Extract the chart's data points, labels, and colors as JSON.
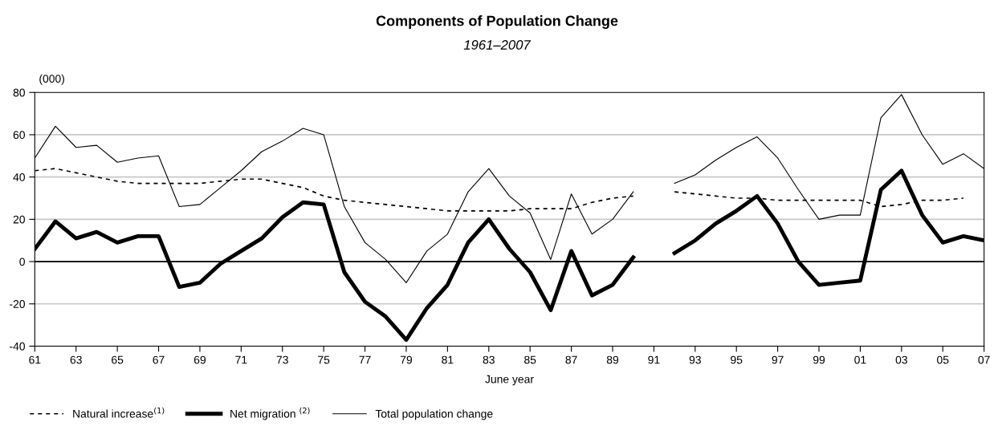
{
  "chart_data": {
    "type": "line",
    "title": "Components of Population Change",
    "subtitle": "1961–2007",
    "xlabel": "June year",
    "ylabel": "(000)",
    "x": [
      1961,
      1962,
      1963,
      1964,
      1965,
      1966,
      1967,
      1968,
      1969,
      1970,
      1971,
      1972,
      1973,
      1974,
      1975,
      1976,
      1977,
      1978,
      1979,
      1980,
      1981,
      1982,
      1983,
      1984,
      1985,
      1986,
      1987,
      1988,
      1989,
      1990,
      1991,
      1992,
      1993,
      1994,
      1995,
      1996,
      1997,
      1998,
      1999,
      2000,
      2001,
      2002,
      2003,
      2004,
      2005,
      2006,
      2007
    ],
    "series": [
      {
        "name": "Natural increase$^{(1)}$",
        "color": "#000000",
        "line_style": "dashed",
        "values": [
          43,
          44,
          42,
          40,
          38,
          37,
          37,
          37,
          37,
          38,
          39,
          39,
          37,
          35,
          31,
          29,
          28,
          27,
          26,
          25,
          24,
          24,
          24,
          24,
          25,
          25,
          25,
          28,
          30,
          31,
          null,
          33,
          32,
          31,
          30,
          30,
          29,
          29,
          29,
          29,
          29,
          26,
          27,
          29,
          29,
          30,
          null
        ]
      },
      {
        "name": "Net migration $^{(2)}$",
        "color": "#000000",
        "line_style": "solid",
        "values": [
          6,
          19,
          11,
          14,
          9,
          12,
          12,
          -12,
          -10,
          -1,
          5,
          11,
          21,
          28,
          27,
          -5,
          -19,
          -26,
          -37,
          -22,
          -11,
          9,
          20,
          6,
          -5,
          -23,
          5,
          -16,
          -11,
          2,
          null,
          4,
          10,
          18,
          24,
          31,
          18,
          0,
          -11,
          -10,
          -9,
          34,
          43,
          22,
          9,
          12,
          10
        ]
      },
      {
        "name": "Total population change",
        "color": "#000000",
        "line_style": "solid",
        "values": [
          49,
          64,
          54,
          55,
          47,
          49,
          50,
          26,
          27,
          35,
          43,
          52,
          57,
          63,
          60,
          26,
          9,
          1,
          -10,
          5,
          13,
          33,
          44,
          31,
          23,
          1,
          32,
          13,
          20,
          33,
          null,
          37,
          41,
          48,
          54,
          59,
          49,
          34,
          20,
          22,
          22,
          68,
          79,
          60,
          46,
          51,
          44
        ]
      }
    ],
    "xlim": [
      1961,
      2007
    ],
    "xticks": [
      {
        "value": 1961,
        "label": "61"
      },
      {
        "value": 1963,
        "label": "63"
      },
      {
        "value": 1965,
        "label": "65"
      },
      {
        "value": 1967,
        "label": "67"
      },
      {
        "value": 1969,
        "label": "69"
      },
      {
        "value": 1971,
        "label": "71"
      },
      {
        "value": 1973,
        "label": "73"
      },
      {
        "value": 1975,
        "label": "75"
      },
      {
        "value": 1977,
        "label": "77"
      },
      {
        "value": 1979,
        "label": "79"
      },
      {
        "value": 1981,
        "label": "81"
      },
      {
        "value": 1983,
        "label": "83"
      },
      {
        "value": 1985,
        "label": "85"
      },
      {
        "value": 1987,
        "label": "87"
      },
      {
        "value": 1989,
        "label": "89"
      },
      {
        "value": 1991,
        "label": "91"
      },
      {
        "value": 1993,
        "label": "93"
      },
      {
        "value": 1995,
        "label": "95"
      },
      {
        "value": 1997,
        "label": "97"
      },
      {
        "value": 1999,
        "label": "99"
      },
      {
        "value": 2001,
        "label": "01"
      },
      {
        "value": 2003,
        "label": "03"
      },
      {
        "value": 2005,
        "label": "05"
      },
      {
        "value": 2007,
        "label": "07"
      }
    ],
    "ylim": [
      -40,
      80
    ],
    "yticks": [
      -40,
      -20,
      0,
      20,
      40,
      60,
      80
    ],
    "ref_lines": [
      {
        "axis": "y",
        "value": 0,
        "color": "#000000"
      }
    ],
    "grid": "y",
    "legend": "bottom left",
    "marker": "none"
  }
}
